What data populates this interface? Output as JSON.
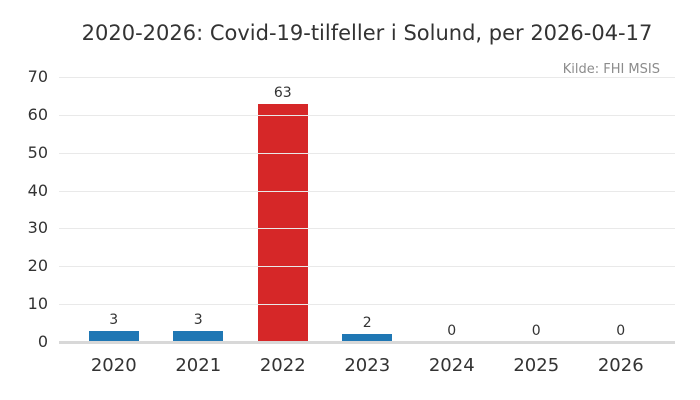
{
  "chart_data": {
    "type": "bar",
    "title": "2020-2026: Covid-19-tilfeller i Solund, per 2026-04-17",
    "source_annotation": "Kilde: FHI MSIS",
    "categories": [
      "2020",
      "2021",
      "2022",
      "2023",
      "2024",
      "2025",
      "2026"
    ],
    "values": [
      3,
      3,
      63,
      2,
      0,
      0,
      0
    ],
    "value_labels": [
      "3",
      "3",
      "63",
      "2",
      "0",
      "0",
      "0"
    ],
    "bar_colors": [
      "#1f77b4",
      "#1f77b4",
      "#d62728",
      "#1f77b4",
      "#1f77b4",
      "#1f77b4",
      "#1f77b4"
    ],
    "yticks": [
      0,
      10,
      20,
      30,
      40,
      50,
      60,
      70
    ],
    "ylim": [
      0,
      70
    ],
    "xlabel": "",
    "ylabel": "",
    "grid": "horizontal",
    "legend": "none",
    "colors": {
      "bar_default": "#1f77b4",
      "bar_highlight": "#d62728",
      "gridline": "#e9e9e9",
      "baseline": "#d8d8d8",
      "text": "#333333",
      "source_text": "#8c8c8c",
      "background": "#ffffff"
    }
  }
}
